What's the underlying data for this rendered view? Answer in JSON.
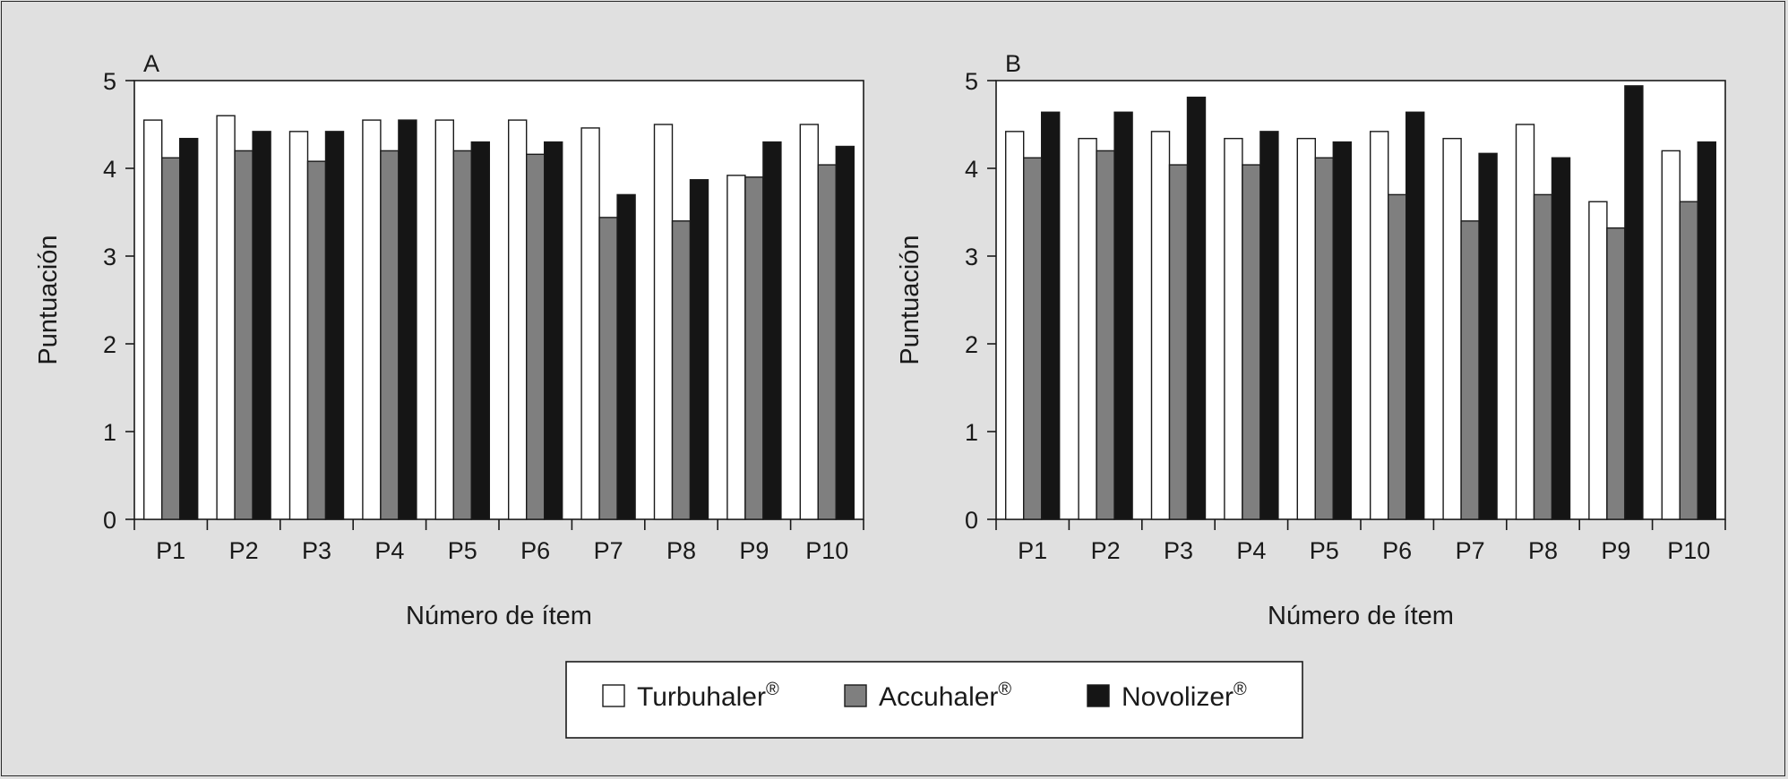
{
  "colors": {
    "background": "#e0e0e0",
    "Turbuhaler": "#ffffff",
    "Accuhaler": "#7f7f7f",
    "Novolizer": "#151515",
    "stroke": "#1a1a1a"
  },
  "legend": {
    "items": [
      {
        "name": "Turbuhaler",
        "sup": "®",
        "color_key": "Turbuhaler"
      },
      {
        "name": "Accuhaler",
        "sup": "®",
        "color_key": "Accuhaler"
      },
      {
        "name": "Novolizer",
        "sup": "®",
        "color_key": "Novolizer"
      }
    ]
  },
  "chart_data": [
    {
      "type": "bar",
      "panel": "A",
      "xlabel": "Número de ítem",
      "ylabel": "Puntuación",
      "ylim": [
        0,
        5
      ],
      "yticks": [
        0,
        1,
        2,
        3,
        4,
        5
      ],
      "categories": [
        "P1",
        "P2",
        "P3",
        "P4",
        "P5",
        "P6",
        "P7",
        "P8",
        "P9",
        "P10"
      ],
      "series": [
        {
          "name": "Turbuhaler®",
          "values": [
            4.55,
            4.6,
            4.42,
            4.55,
            4.55,
            4.55,
            4.46,
            4.5,
            3.92,
            4.5
          ]
        },
        {
          "name": "Accuhaler®",
          "values": [
            4.12,
            4.2,
            4.08,
            4.2,
            4.2,
            4.16,
            3.44,
            3.4,
            3.9,
            4.04
          ]
        },
        {
          "name": "Novolizer®",
          "values": [
            4.34,
            4.42,
            4.42,
            4.55,
            4.3,
            4.3,
            3.7,
            3.87,
            4.3,
            4.25
          ]
        }
      ]
    },
    {
      "type": "bar",
      "panel": "B",
      "xlabel": "Número de ítem",
      "ylabel": "Puntuación",
      "ylim": [
        0,
        5
      ],
      "yticks": [
        0,
        1,
        2,
        3,
        4,
        5
      ],
      "categories": [
        "P1",
        "P2",
        "P3",
        "P4",
        "P5",
        "P6",
        "P7",
        "P8",
        "P9",
        "P10"
      ],
      "series": [
        {
          "name": "Turbuhaler®",
          "values": [
            4.42,
            4.34,
            4.42,
            4.34,
            4.34,
            4.42,
            4.34,
            4.5,
            3.62,
            4.2
          ]
        },
        {
          "name": "Accuhaler®",
          "values": [
            4.12,
            4.2,
            4.04,
            4.04,
            4.12,
            3.7,
            3.4,
            3.7,
            3.32,
            3.62
          ]
        },
        {
          "name": "Novolizer®",
          "values": [
            4.64,
            4.64,
            4.81,
            4.42,
            4.3,
            4.64,
            4.17,
            4.12,
            4.94,
            4.3
          ]
        }
      ]
    }
  ]
}
